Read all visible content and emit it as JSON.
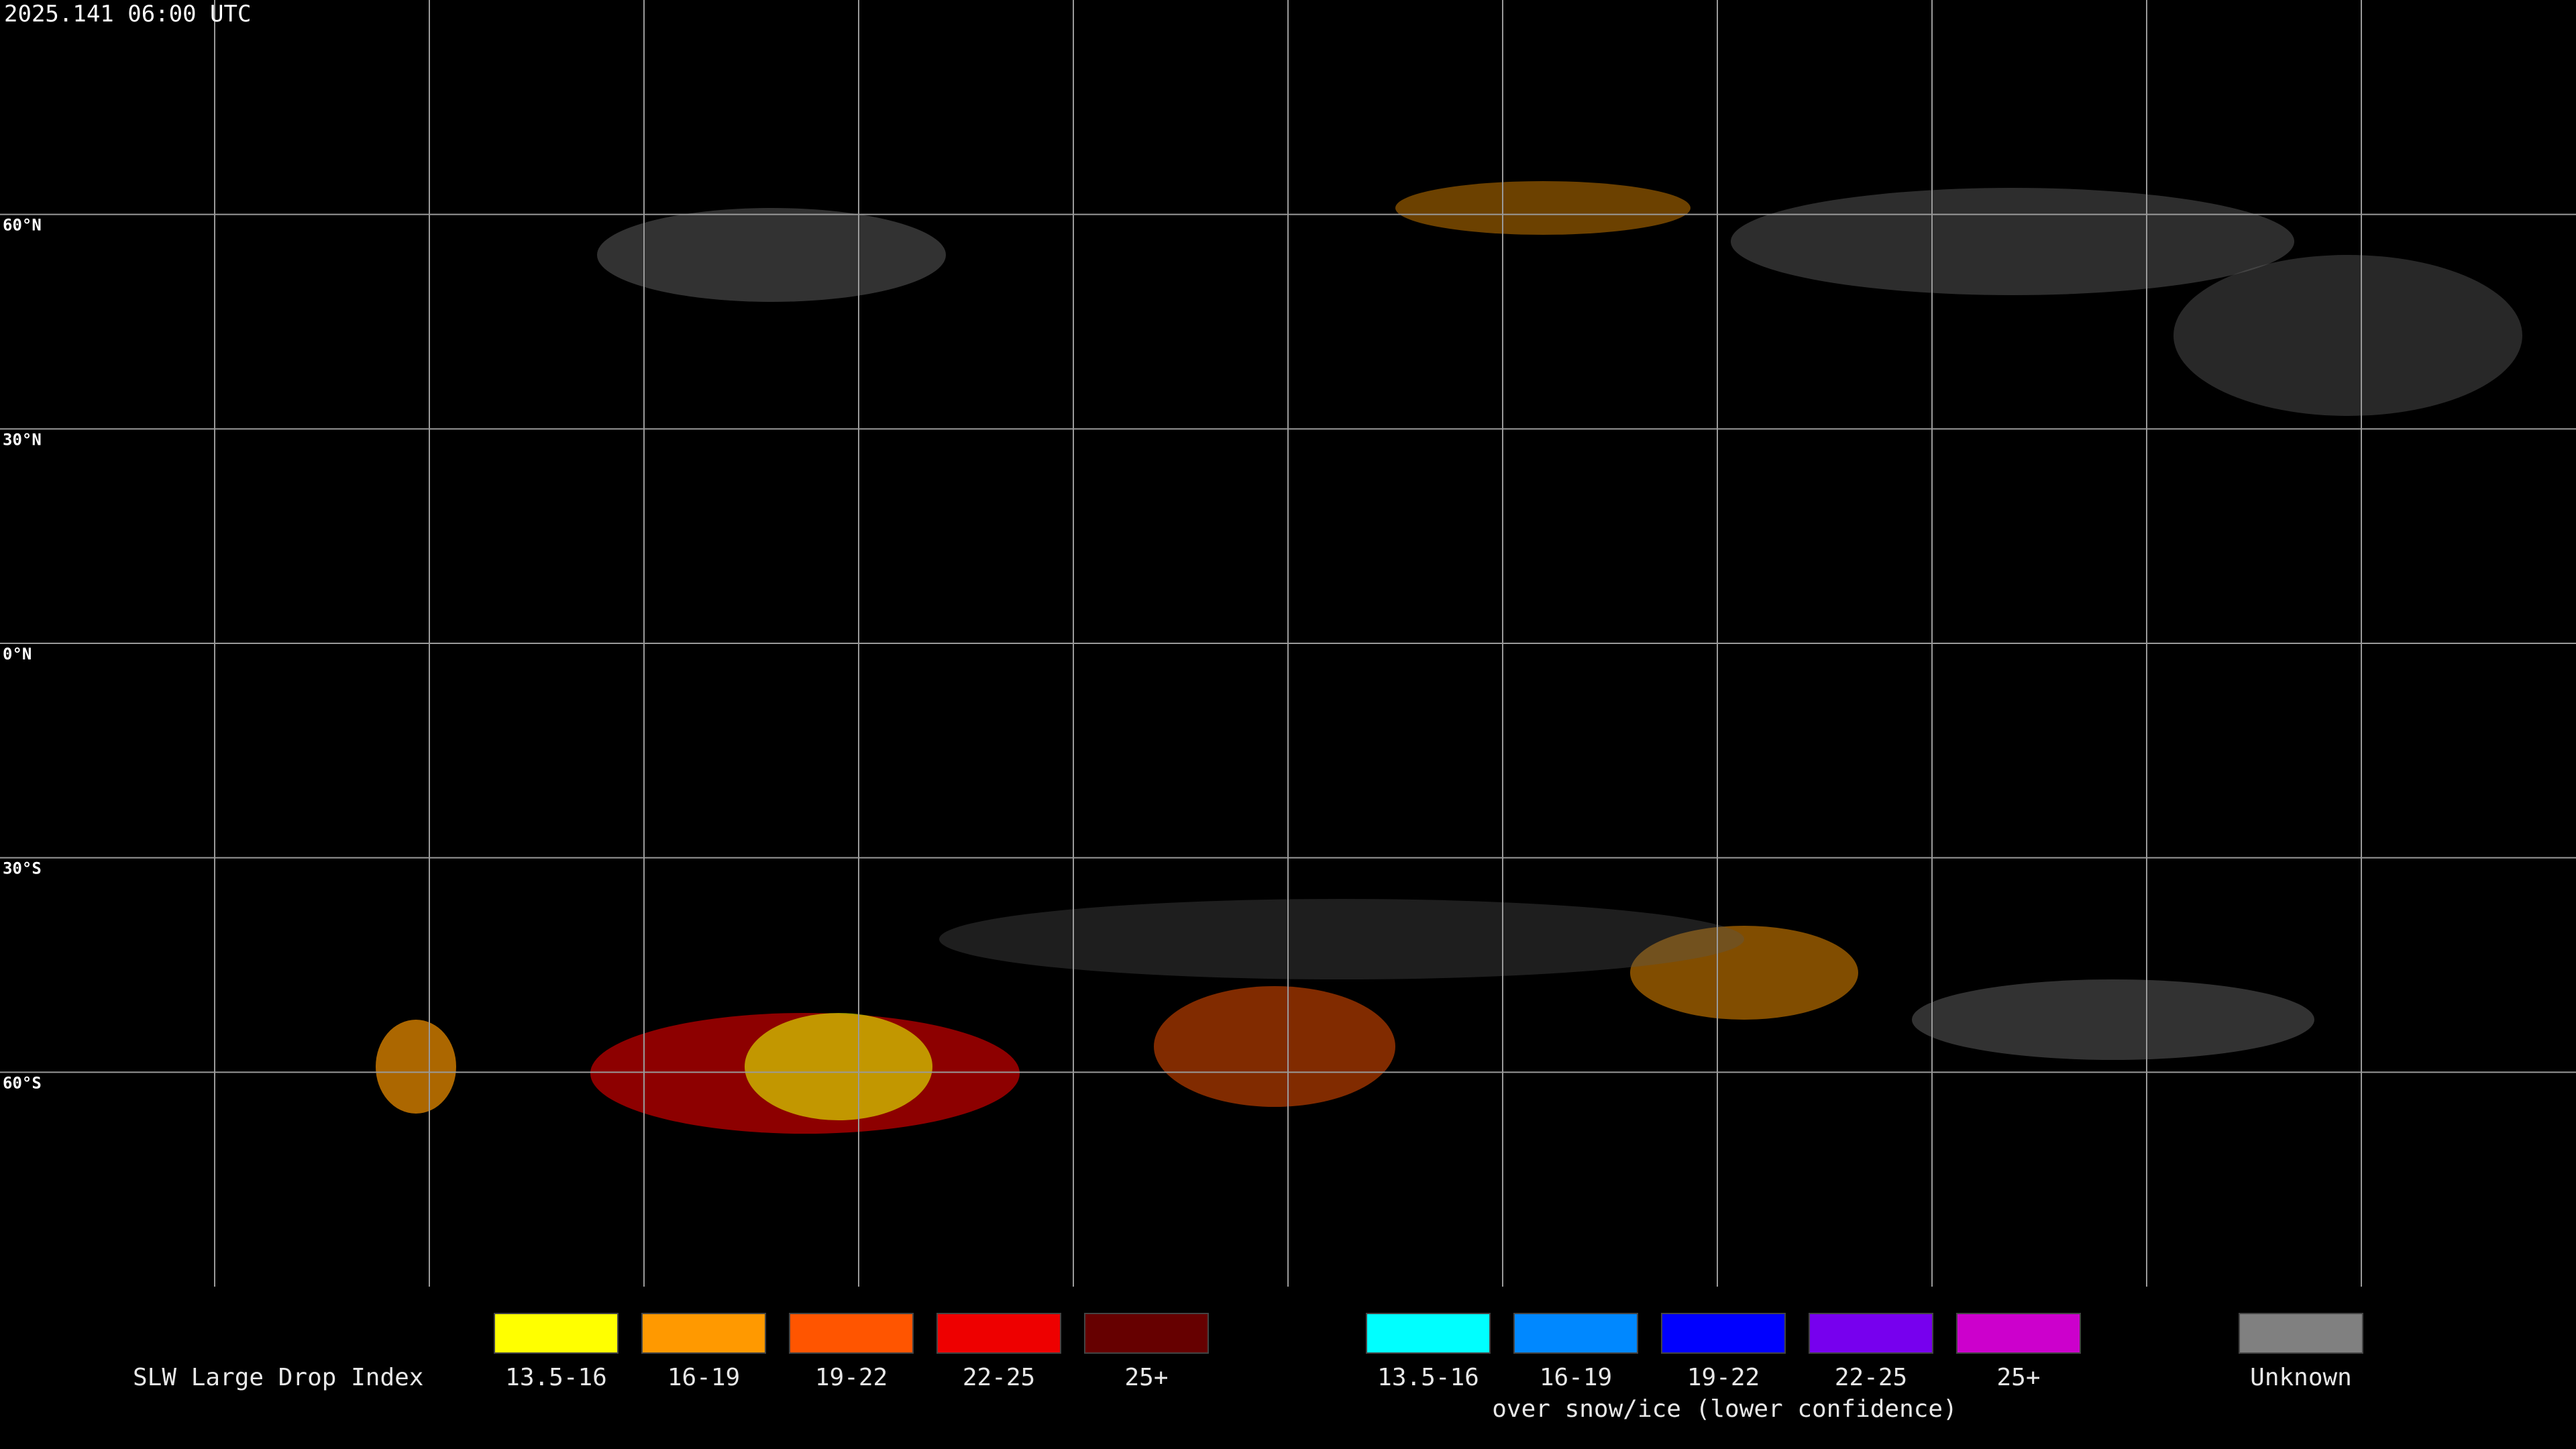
{
  "timestamp": "2025.141 06:00 UTC",
  "latitude_labels": [
    "60°N",
    "30°N",
    "0°N",
    "30°S",
    "60°S"
  ],
  "legend": {
    "title": "SLW Large Drop Index",
    "items": [
      {
        "label": "13.5-16",
        "color": "#ffff00"
      },
      {
        "label": "16-19",
        "color": "#ff9900"
      },
      {
        "label": "19-22",
        "color": "#ff5500"
      },
      {
        "label": "22-25",
        "color": "#ee0000"
      },
      {
        "label": "25+",
        "color": "#660000"
      }
    ],
    "snow_ice_items": [
      {
        "label": "13.5-16",
        "color": "#00ffff"
      },
      {
        "label": "16-19",
        "color": "#0088ff"
      },
      {
        "label": "19-22",
        "color": "#0000ff"
      },
      {
        "label": "22-25",
        "color": "#7700ee"
      },
      {
        "label": "25+",
        "color": "#cc00cc"
      }
    ],
    "snow_ice_caption": "over snow/ice (lower confidence)",
    "unknown": {
      "label": "Unknown",
      "color": "#808080"
    }
  }
}
